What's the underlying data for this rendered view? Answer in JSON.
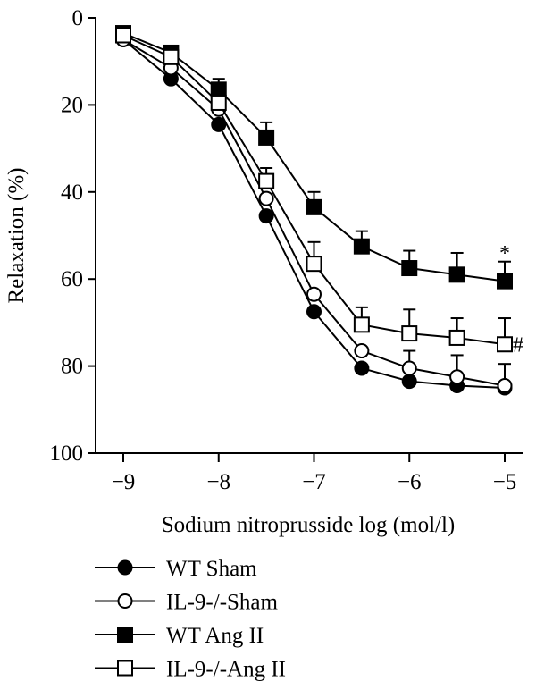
{
  "chart_data": {
    "type": "line",
    "xlabel": "Sodium nitroprusside log (mol/l)",
    "ylabel": "Relaxation (%)",
    "x": [
      -9,
      -8.5,
      -8,
      -7.5,
      -7,
      -6.5,
      -6,
      -5.5,
      -5
    ],
    "x_ticks": [
      -9,
      -8,
      -7,
      -6,
      -5
    ],
    "x_tick_labels": [
      "−9",
      "−8",
      "−7",
      "−6",
      "−5"
    ],
    "y_ticks": [
      0,
      20,
      40,
      60,
      80,
      100
    ],
    "y_tick_labels": [
      "0",
      "20",
      "40",
      "60",
      "80",
      "100"
    ],
    "xlim": [
      -9.2,
      -4.8
    ],
    "ylim": [
      0,
      100
    ],
    "y_inverted": true,
    "grid": false,
    "legend_position": "bottom-left",
    "series": [
      {
        "name": "WT Sham",
        "marker": "filled-circle",
        "values": [
          5,
          14,
          24.5,
          45.5,
          67.5,
          80.5,
          83.5,
          84.5,
          85
        ],
        "errors": [
          0,
          0,
          0,
          0,
          0,
          0,
          0,
          0,
          0
        ]
      },
      {
        "name": "IL-9-/-Sham",
        "marker": "open-circle",
        "values": [
          5,
          11.5,
          21,
          41.5,
          63.5,
          76.5,
          80.5,
          82.5,
          84.5
        ],
        "errors": [
          0,
          0,
          0,
          0,
          0,
          0,
          4,
          5,
          5
        ]
      },
      {
        "name": "WT Ang II",
        "marker": "filled-square",
        "values": [
          3.5,
          8,
          16.5,
          27.5,
          43.5,
          52.5,
          57.5,
          59,
          60.5
        ],
        "errors": [
          1,
          1.5,
          2.5,
          3.5,
          3.5,
          3.5,
          4,
          5,
          4.5
        ]
      },
      {
        "name": "IL-9-/-Ang II",
        "marker": "open-square",
        "values": [
          4,
          9,
          19.5,
          37.5,
          56.5,
          70.5,
          72.5,
          73.5,
          75
        ],
        "errors": [
          1,
          1.5,
          2.5,
          3,
          5,
          4,
          5.5,
          4.5,
          6
        ]
      }
    ],
    "annotations": [
      {
        "text": "*",
        "x": -5,
        "y": 54
      },
      {
        "text": "#",
        "x": -4.86,
        "y": 75
      }
    ]
  }
}
